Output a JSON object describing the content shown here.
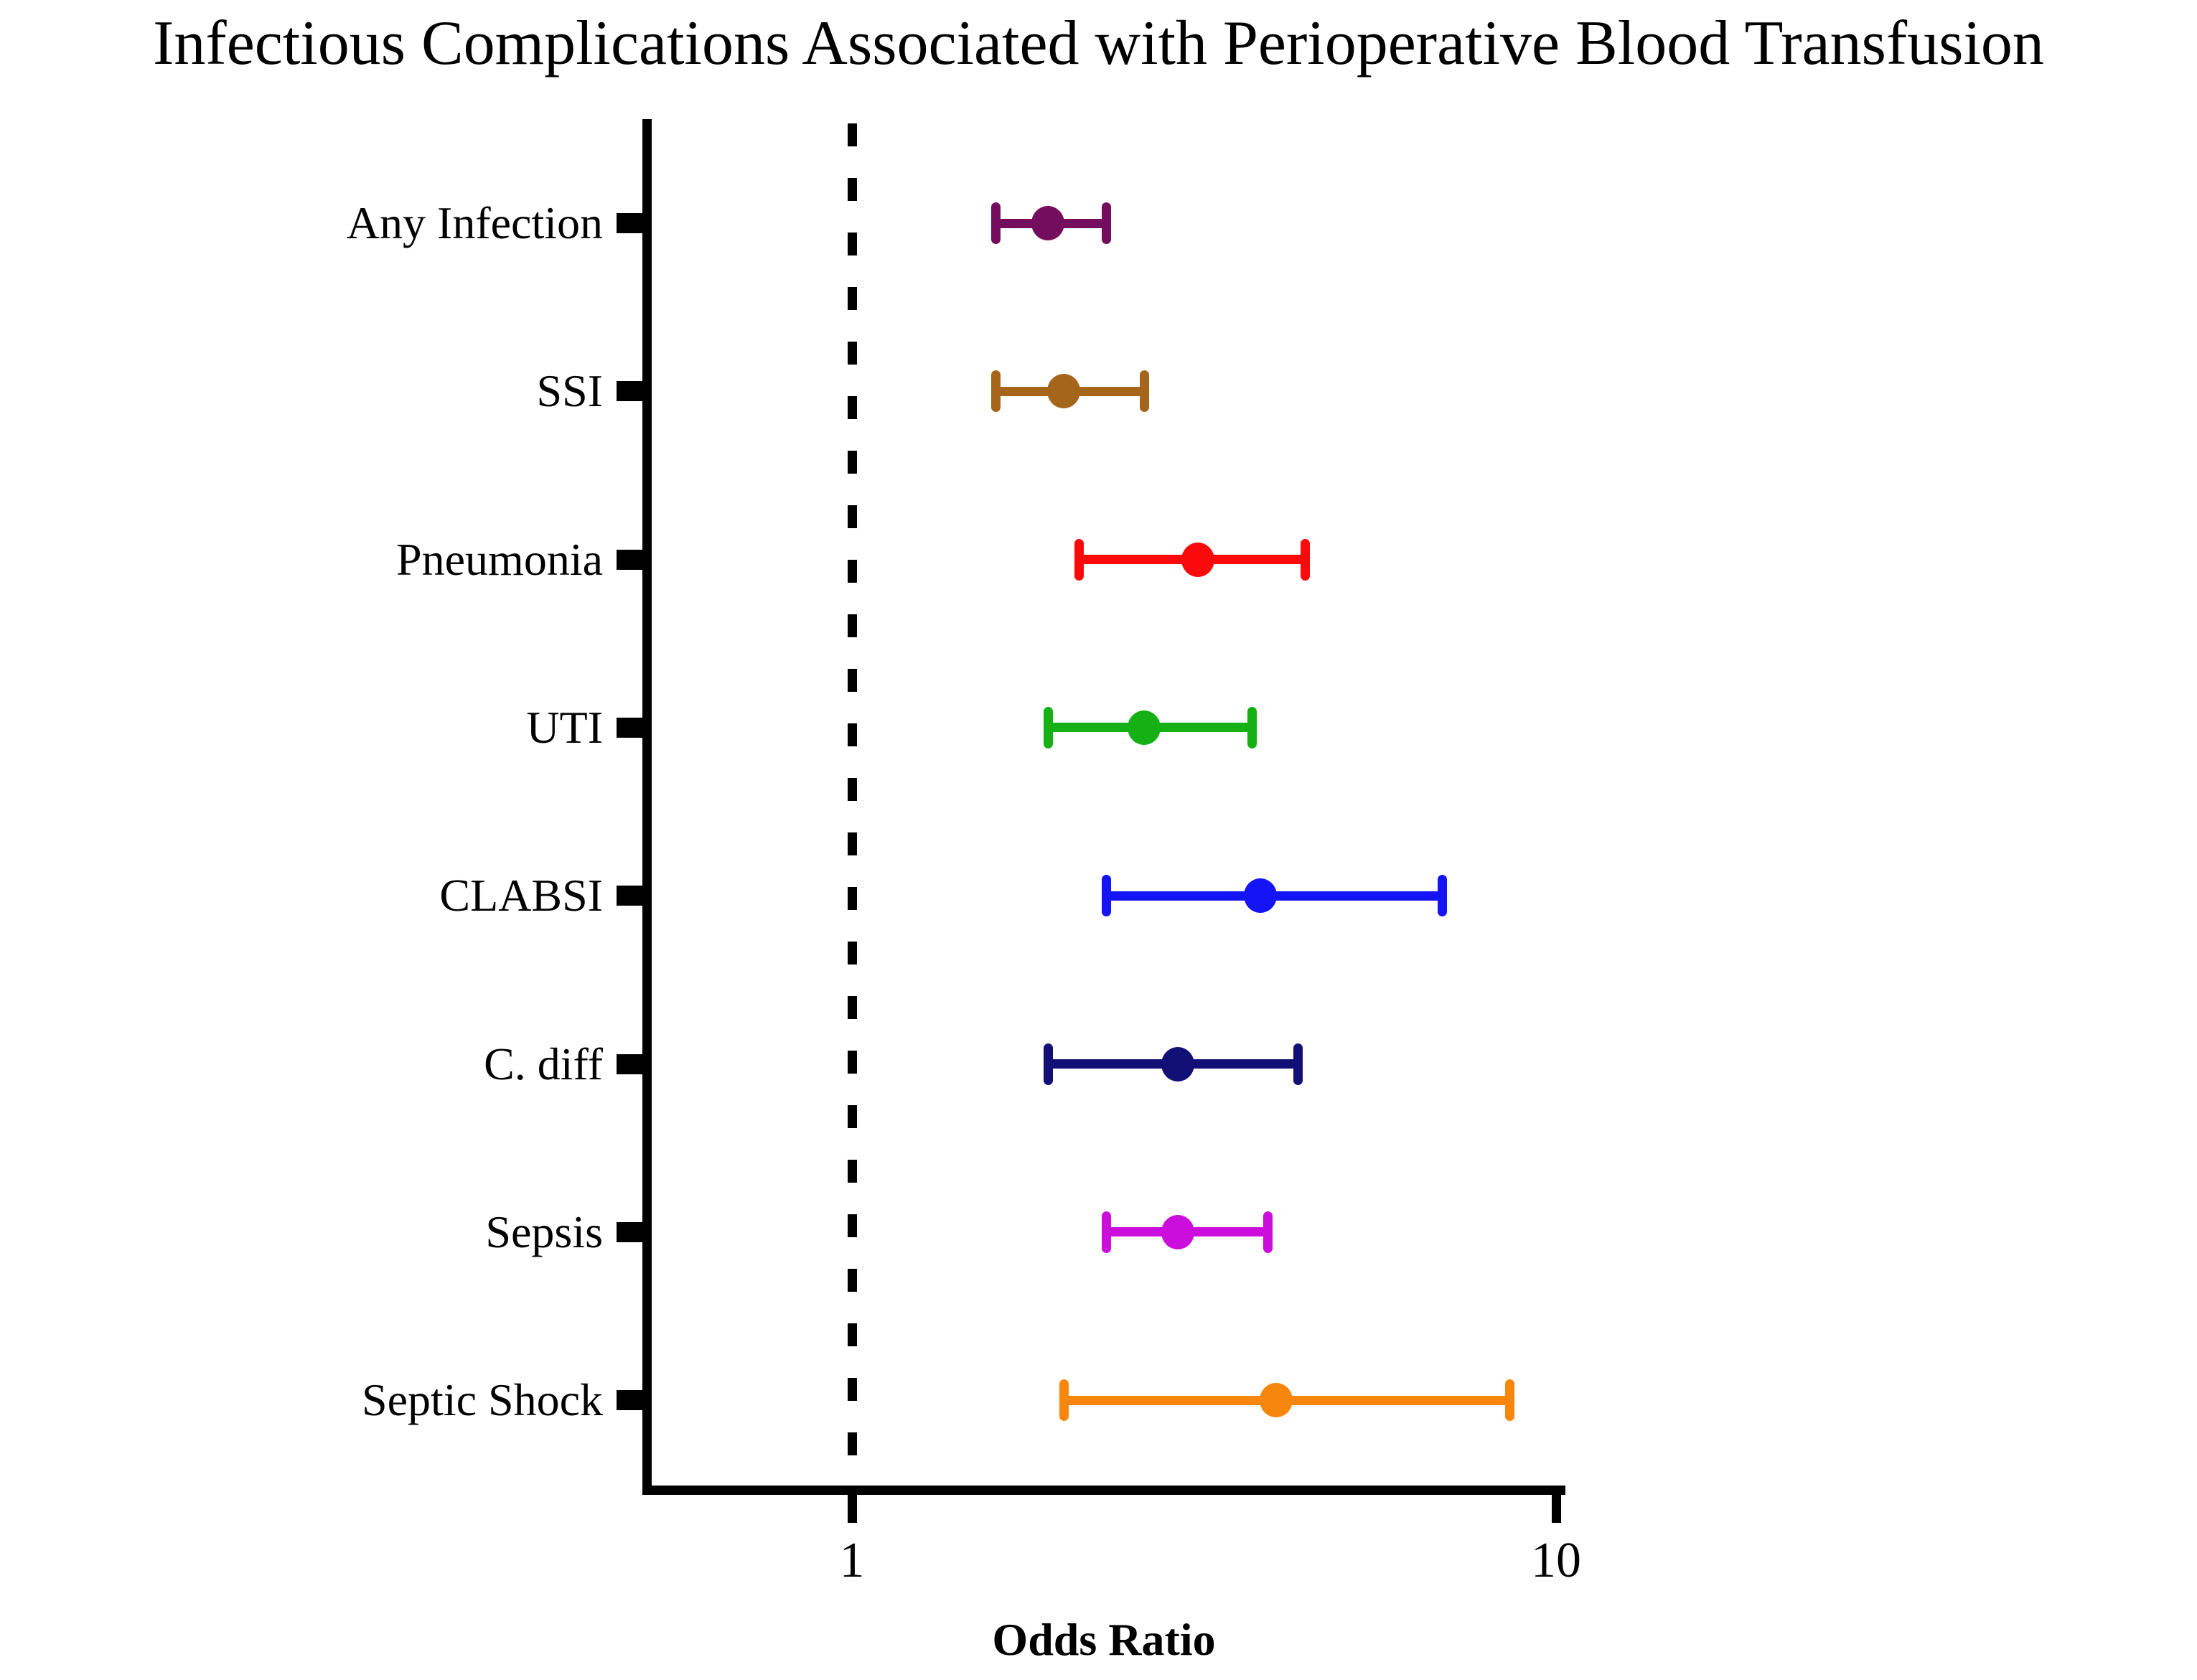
{
  "chart_data": {
    "type": "scatter",
    "subtype": "forest-plot",
    "title": "Infectious Complications Associated with Perioperative Blood Transfusion",
    "xlabel": "Odds Ratio",
    "x_scale": "log10",
    "x_ticks": [
      "1",
      "10"
    ],
    "x_tick_values": [
      1,
      10
    ],
    "xlim": [
      0.51,
      10.2
    ],
    "reference_line": 1,
    "grid": false,
    "legend": false,
    "rows": [
      {
        "label": "Any Infection",
        "or": 1.9,
        "ci_low": 1.6,
        "ci_high": 2.3,
        "color": "#750D5E"
      },
      {
        "label": "SSI",
        "or": 2.0,
        "ci_low": 1.6,
        "ci_high": 2.6,
        "color": "#A5661C"
      },
      {
        "label": "Pneumonia",
        "or": 3.1,
        "ci_low": 2.1,
        "ci_high": 4.4,
        "color": "#FA0A0A"
      },
      {
        "label": "UTI",
        "or": 2.6,
        "ci_low": 1.9,
        "ci_high": 3.7,
        "color": "#14B014"
      },
      {
        "label": "CLABSI",
        "or": 3.8,
        "ci_low": 2.3,
        "ci_high": 6.9,
        "color": "#1414F5"
      },
      {
        "label": "C. diff",
        "or": 2.9,
        "ci_low": 1.9,
        "ci_high": 4.3,
        "color": "#131075"
      },
      {
        "label": "Sepsis",
        "or": 2.9,
        "ci_low": 2.3,
        "ci_high": 3.9,
        "color": "#CC0EDC"
      },
      {
        "label": "Septic Shock",
        "or": 4.0,
        "ci_low": 2.0,
        "ci_high": 8.6,
        "color": "#F7860C"
      }
    ]
  }
}
